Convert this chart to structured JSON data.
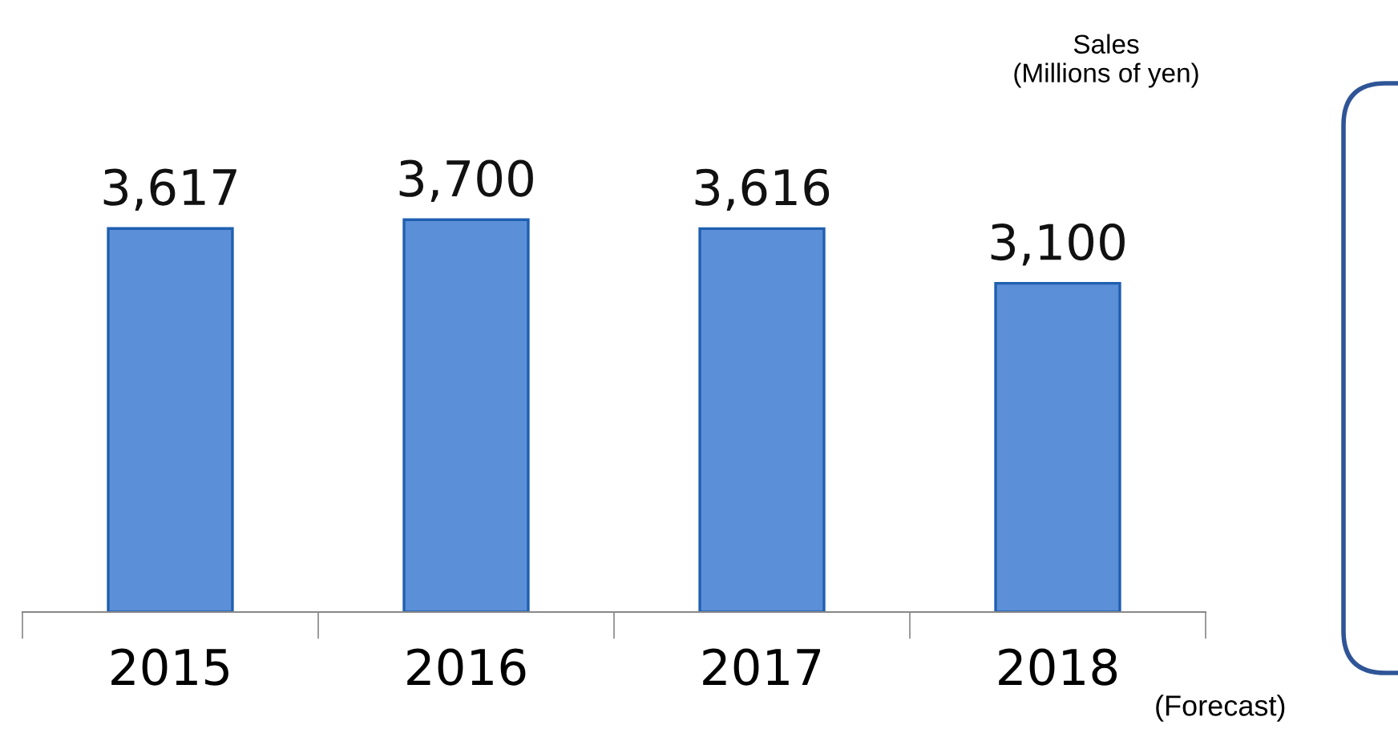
{
  "chart_data": {
    "type": "bar",
    "ylabel": "Sales\n(Millions of yen)",
    "categories": [
      "2015",
      "2016",
      "2017",
      "2018"
    ],
    "values": [
      3617,
      3700,
      3616,
      3100
    ],
    "value_labels": [
      "3,617",
      "3,700",
      "3,616",
      "3,100"
    ],
    "color": "#5b8fd8",
    "annotations": [
      "(Forecast)"
    ],
    "grid": false
  }
}
